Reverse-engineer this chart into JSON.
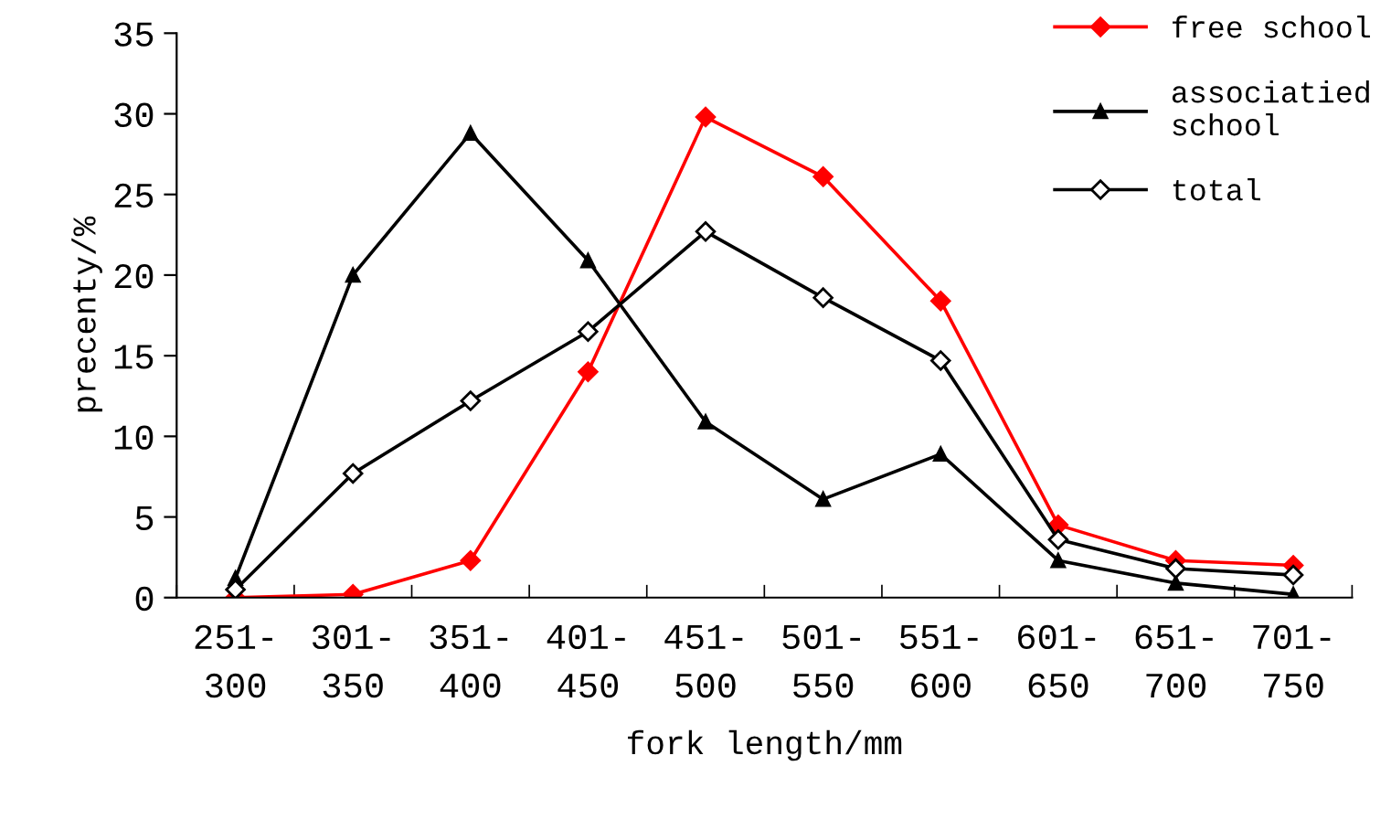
{
  "chart_data": {
    "type": "line",
    "xlabel": "fork length/mm",
    "ylabel": "precenty/%",
    "categories": [
      "251-\n300",
      "301-\n350",
      "351-\n400",
      "401-\n450",
      "451-\n500",
      "501-\n550",
      "551-\n600",
      "601-\n650",
      "651-\n700",
      "701-\n750"
    ],
    "ylim": [
      0,
      35
    ],
    "yticks": [
      0,
      5,
      10,
      15,
      20,
      25,
      30,
      35
    ],
    "grid": false,
    "legend": "top right",
    "series": [
      {
        "name": "free school",
        "color": "#ff0000",
        "marker": "diamond",
        "values": [
          0,
          0.2,
          2.3,
          14.0,
          29.8,
          26.1,
          18.4,
          4.5,
          2.3,
          2.0
        ]
      },
      {
        "name": "associatied\nschool",
        "color": "#000000",
        "marker": "triangle",
        "values": [
          1.2,
          20.0,
          28.8,
          20.9,
          10.9,
          6.1,
          8.9,
          2.3,
          0.9,
          0.2
        ]
      },
      {
        "name": "total",
        "color": "#000000",
        "marker": "diamond",
        "values": [
          0.5,
          7.7,
          12.2,
          16.5,
          22.7,
          18.6,
          14.7,
          3.6,
          1.8,
          1.4
        ]
      }
    ]
  }
}
